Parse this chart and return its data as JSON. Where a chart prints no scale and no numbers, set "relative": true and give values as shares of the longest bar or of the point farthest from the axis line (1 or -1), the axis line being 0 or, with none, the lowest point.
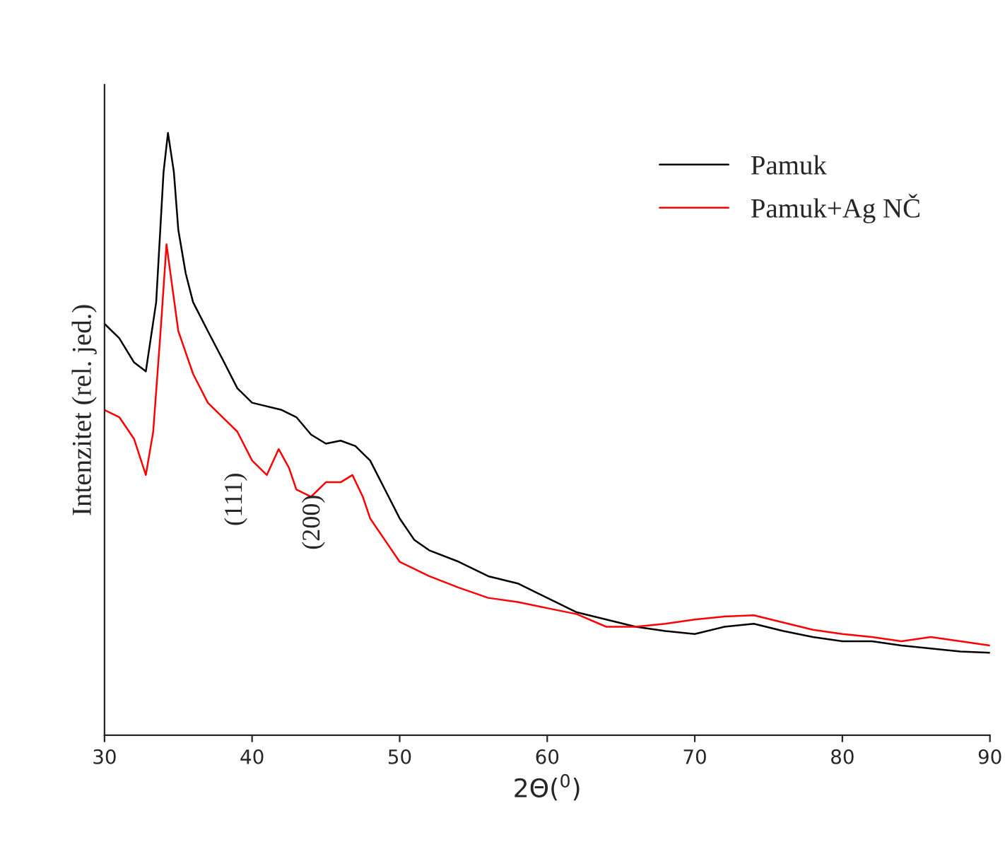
{
  "chart_data": {
    "type": "line",
    "relative": true,
    "xlabel": "2Θ($^{0}$)",
    "ylabel": "Intenzitet (rel. jed.)",
    "xlim": [
      30,
      90
    ],
    "xticks": [
      30,
      40,
      50,
      60,
      70,
      80,
      90
    ],
    "legend": "top right",
    "grid": false,
    "series": [
      {
        "name": "Pamuk",
        "color": "#000000",
        "x": [
          30,
          31,
          32,
          32.8,
          33.5,
          34,
          34.3,
          34.7,
          35,
          35.5,
          36,
          37,
          38,
          39,
          40,
          42,
          43,
          44,
          45,
          46,
          47,
          48,
          49,
          50,
          51,
          52,
          54,
          56,
          58,
          60,
          62,
          64,
          66,
          68,
          70,
          72,
          74,
          76,
          78,
          80,
          82,
          84,
          86,
          88,
          90
        ],
        "values": [
          0.683,
          0.659,
          0.619,
          0.604,
          0.719,
          0.935,
          1,
          0.935,
          0.839,
          0.767,
          0.719,
          0.671,
          0.624,
          0.576,
          0.552,
          0.54,
          0.528,
          0.499,
          0.484,
          0.489,
          0.48,
          0.456,
          0.408,
          0.36,
          0.324,
          0.307,
          0.288,
          0.264,
          0.252,
          0.228,
          0.204,
          0.192,
          0.18,
          0.173,
          0.168,
          0.18,
          0.185,
          0.173,
          0.163,
          0.156,
          0.156,
          0.149,
          0.144,
          0.139,
          0.137
        ]
      },
      {
        "name": "Pamuk+Ag NČ",
        "color": "#ff0000",
        "x": [
          30,
          31,
          32,
          32.8,
          33.3,
          33.8,
          34.2,
          34.6,
          35,
          36,
          37,
          38,
          39,
          40,
          41,
          41.8,
          42.5,
          43,
          44,
          45,
          46,
          46.8,
          47.5,
          48,
          49,
          50,
          52,
          54,
          56,
          58,
          60,
          62,
          64,
          66,
          68,
          70,
          72,
          74,
          76,
          78,
          80,
          82,
          84,
          86,
          88,
          90
        ],
        "values": [
          0.54,
          0.528,
          0.492,
          0.432,
          0.504,
          0.671,
          0.815,
          0.743,
          0.671,
          0.6,
          0.552,
          0.528,
          0.504,
          0.456,
          0.432,
          0.475,
          0.444,
          0.408,
          0.396,
          0.42,
          0.42,
          0.432,
          0.396,
          0.36,
          0.324,
          0.288,
          0.264,
          0.245,
          0.228,
          0.221,
          0.211,
          0.201,
          0.18,
          0.18,
          0.185,
          0.192,
          0.197,
          0.199,
          0.187,
          0.175,
          0.168,
          0.163,
          0.156,
          0.163,
          0.156,
          0.149
        ]
      }
    ],
    "annotations": [
      {
        "text": "(111)",
        "x": 41.8,
        "y": 0.475
      },
      {
        "text": "(200)",
        "x": 46.8,
        "y": 0.432
      }
    ]
  }
}
